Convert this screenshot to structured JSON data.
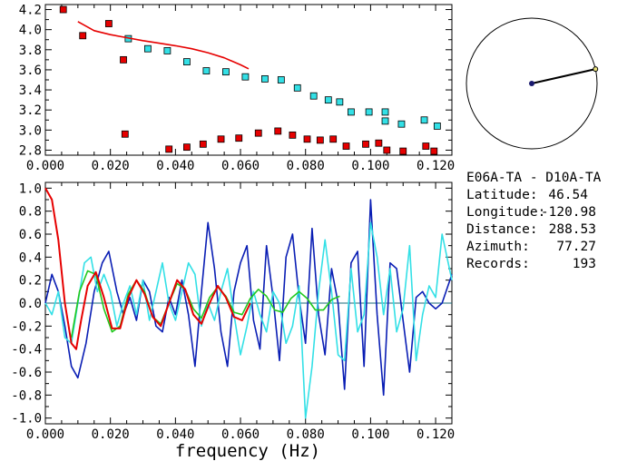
{
  "station_info": {
    "pair": "E06A-TA - D10A-TA",
    "latitude_label": "Latitude:",
    "latitude_value": "46.54",
    "longitude_label": "Longitude:",
    "longitude_value": "-120.98",
    "distance_label": "Distance:",
    "distance_value": "288.53",
    "azimuth_label": "Azimuth:",
    "azimuth_value": "77.27",
    "records_label": "Records:",
    "records_value": "193"
  },
  "colors": {
    "red": "#e60000",
    "cyan": "#33e0e6",
    "blue": "#0a1eb4",
    "green": "#22c81e",
    "axis": "#000000",
    "marker_dark": "#1a1a6e",
    "marker_light": "#e8e07a"
  },
  "azimuth_deg": 77.27,
  "chart_data": [
    {
      "type": "scatter",
      "xlim": [
        0,
        0.125
      ],
      "ylim": [
        2.75,
        4.25
      ],
      "xticks": [
        "0.000",
        "0.020",
        "0.040",
        "0.060",
        "0.080",
        "0.100",
        "0.120"
      ],
      "yticks": [
        "2.8",
        "3.0",
        "3.2",
        "3.4",
        "3.6",
        "3.8",
        "4.0",
        "4.2"
      ],
      "grid": false,
      "series": [
        {
          "kind": "markers",
          "color": "red",
          "x": [
            0.0055,
            0.0115,
            0.0195,
            0.024,
            0.0245,
            0.038,
            0.0435,
            0.0485,
            0.054,
            0.0595,
            0.0655,
            0.0715,
            0.076,
            0.0805,
            0.0845,
            0.0885,
            0.0925,
            0.0985,
            0.1025,
            0.105,
            0.11,
            0.117,
            0.1195
          ],
          "y": [
            4.2,
            3.94,
            4.06,
            3.7,
            2.96,
            2.81,
            2.83,
            2.86,
            2.91,
            2.92,
            2.97,
            2.99,
            2.95,
            2.91,
            2.9,
            2.91,
            2.84,
            2.86,
            2.87,
            2.8,
            2.79,
            2.84,
            2.79
          ]
        },
        {
          "kind": "markers",
          "color": "cyan",
          "x": [
            0.0255,
            0.0315,
            0.0375,
            0.0435,
            0.0495,
            0.0555,
            0.0615,
            0.0675,
            0.0725,
            0.0775,
            0.0825,
            0.087,
            0.0905,
            0.094,
            0.0995,
            0.1045,
            0.1045,
            0.1095,
            0.1165,
            0.1205
          ],
          "y": [
            3.91,
            3.81,
            3.79,
            3.68,
            3.59,
            3.58,
            3.53,
            3.51,
            3.5,
            3.42,
            3.34,
            3.3,
            3.28,
            3.18,
            3.18,
            3.18,
            3.09,
            3.06,
            3.1,
            3.04
          ]
        },
        {
          "kind": "line",
          "color": "red",
          "x": [
            0.01,
            0.015,
            0.02,
            0.025,
            0.03,
            0.035,
            0.04,
            0.045,
            0.05,
            0.055,
            0.06,
            0.0625
          ],
          "y": [
            4.08,
            3.99,
            3.95,
            3.92,
            3.89,
            3.865,
            3.84,
            3.81,
            3.77,
            3.72,
            3.65,
            3.61
          ]
        }
      ]
    },
    {
      "type": "line",
      "xlabel": "frequency (Hz)",
      "xlim": [
        0,
        0.125
      ],
      "ylim": [
        -1.05,
        1.05
      ],
      "xticks": [
        "0.000",
        "0.020",
        "0.040",
        "0.060",
        "0.080",
        "0.100",
        "0.120"
      ],
      "yticks": [
        "-1.0",
        "-0.8",
        "-0.6",
        "-0.4",
        "-0.2",
        "0.0",
        "0.2",
        "0.4",
        "0.6",
        "0.8",
        "1.0"
      ],
      "zero_line": true,
      "grid": false,
      "series": [
        {
          "color": "blue",
          "x": [
            0.0,
            0.002,
            0.004,
            0.006,
            0.008,
            0.01,
            0.0125,
            0.015,
            0.0175,
            0.0195,
            0.022,
            0.024,
            0.026,
            0.028,
            0.03,
            0.032,
            0.034,
            0.036,
            0.038,
            0.04,
            0.042,
            0.044,
            0.046,
            0.048,
            0.05,
            0.052,
            0.054,
            0.056,
            0.058,
            0.06,
            0.062,
            0.064,
            0.066,
            0.068,
            0.07,
            0.072,
            0.074,
            0.076,
            0.078,
            0.08,
            0.082,
            0.084,
            0.086,
            0.088,
            0.09,
            0.092,
            0.094,
            0.096,
            0.098,
            0.1,
            0.102,
            0.104,
            0.106,
            0.108,
            0.11,
            0.112,
            0.114,
            0.116,
            0.118,
            0.12,
            0.122,
            0.125
          ],
          "y": [
            0.0,
            0.25,
            0.1,
            -0.2,
            -0.55,
            -0.65,
            -0.35,
            0.1,
            0.35,
            0.45,
            0.1,
            -0.1,
            0.05,
            -0.15,
            0.2,
            0.1,
            -0.2,
            -0.25,
            0.05,
            -0.1,
            0.2,
            -0.1,
            -0.55,
            0.1,
            0.7,
            0.3,
            -0.25,
            -0.55,
            0.1,
            0.35,
            0.5,
            -0.15,
            -0.4,
            0.5,
            0.05,
            -0.5,
            0.4,
            0.6,
            0.05,
            -0.35,
            0.65,
            -0.1,
            -0.45,
            0.3,
            0.0,
            -0.75,
            0.35,
            0.45,
            -0.55,
            0.9,
            -0.1,
            -0.8,
            0.35,
            0.3,
            -0.15,
            -0.6,
            0.05,
            0.1,
            0.0,
            -0.05,
            0.0,
            0.25
          ]
        },
        {
          "color": "cyan",
          "x": [
            0.0,
            0.002,
            0.004,
            0.006,
            0.008,
            0.01,
            0.012,
            0.014,
            0.016,
            0.018,
            0.02,
            0.022,
            0.024,
            0.026,
            0.028,
            0.03,
            0.032,
            0.034,
            0.036,
            0.038,
            0.04,
            0.042,
            0.044,
            0.046,
            0.048,
            0.05,
            0.052,
            0.054,
            0.056,
            0.058,
            0.06,
            0.062,
            0.064,
            0.066,
            0.068,
            0.07,
            0.072,
            0.074,
            0.076,
            0.078,
            0.08,
            0.082,
            0.084,
            0.086,
            0.088,
            0.09,
            0.092,
            0.094,
            0.096,
            0.098,
            0.1,
            0.102,
            0.104,
            0.106,
            0.108,
            0.11,
            0.112,
            0.114,
            0.116,
            0.118,
            0.12,
            0.122,
            0.125
          ],
          "y": [
            0.0,
            -0.1,
            0.1,
            -0.3,
            -0.35,
            0.0,
            0.35,
            0.4,
            0.1,
            0.25,
            0.1,
            -0.2,
            0.0,
            0.15,
            -0.1,
            0.2,
            -0.15,
            0.1,
            0.35,
            0.0,
            -0.15,
            0.1,
            0.35,
            0.25,
            -0.2,
            0.0,
            -0.15,
            0.1,
            0.3,
            -0.1,
            -0.45,
            -0.2,
            0.1,
            -0.1,
            -0.25,
            0.1,
            0.0,
            -0.35,
            -0.2,
            0.15,
            -1.0,
            -0.55,
            0.1,
            0.55,
            0.1,
            -0.45,
            -0.5,
            0.3,
            -0.25,
            -0.1,
            0.7,
            0.4,
            -0.1,
            0.3,
            -0.25,
            -0.05,
            0.5,
            -0.5,
            -0.1,
            0.15,
            0.05,
            0.6,
            0.2
          ]
        },
        {
          "color": "green",
          "x": [
            0.008,
            0.0105,
            0.013,
            0.0155,
            0.018,
            0.0205,
            0.023,
            0.0255,
            0.028,
            0.0305,
            0.033,
            0.0355,
            0.038,
            0.0405,
            0.043,
            0.0455,
            0.048,
            0.0505,
            0.053,
            0.0555,
            0.058,
            0.0605,
            0.063,
            0.0655,
            0.068,
            0.0705,
            0.073,
            0.0755,
            0.078,
            0.0805,
            0.083,
            0.0855,
            0.088,
            0.0905
          ],
          "y": [
            -0.3,
            0.1,
            0.28,
            0.25,
            -0.05,
            -0.25,
            -0.2,
            0.08,
            0.2,
            0.1,
            -0.12,
            -0.18,
            0.0,
            0.17,
            0.12,
            -0.05,
            -0.13,
            0.05,
            0.14,
            0.06,
            -0.08,
            -0.1,
            0.04,
            0.12,
            0.06,
            -0.06,
            -0.08,
            0.04,
            0.1,
            0.04,
            -0.06,
            -0.06,
            0.03,
            0.06
          ]
        },
        {
          "color": "red",
          "x": [
            0.0,
            0.002,
            0.004,
            0.006,
            0.008,
            0.0095,
            0.011,
            0.013,
            0.0155,
            0.018,
            0.0205,
            0.023,
            0.0255,
            0.028,
            0.0305,
            0.033,
            0.0355,
            0.038,
            0.0405,
            0.043,
            0.0455,
            0.048,
            0.0505,
            0.053,
            0.0555,
            0.058,
            0.0605,
            0.063
          ],
          "y": [
            1.0,
            0.9,
            0.55,
            0.0,
            -0.35,
            -0.4,
            -0.15,
            0.15,
            0.27,
            0.05,
            -0.22,
            -0.22,
            0.05,
            0.2,
            0.08,
            -0.12,
            -0.2,
            0.0,
            0.2,
            0.12,
            -0.1,
            -0.18,
            0.0,
            0.15,
            0.05,
            -0.12,
            -0.15,
            0.0
          ]
        }
      ]
    }
  ]
}
